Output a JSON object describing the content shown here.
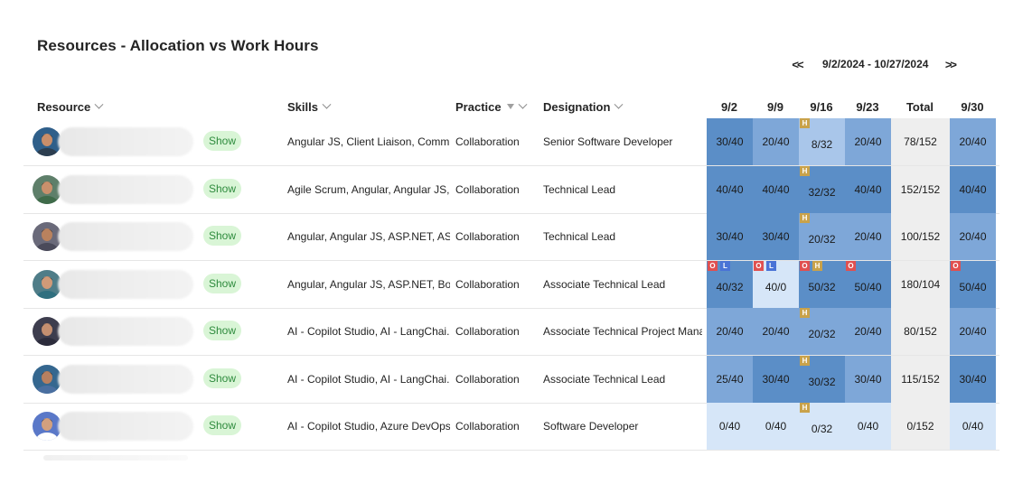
{
  "page": {
    "title": "Resources - Allocation vs Work Hours"
  },
  "date_nav": {
    "prev_label": "<<",
    "range": "9/2/2024 - 10/27/2024",
    "next_label": ">>"
  },
  "columns": {
    "resource": "Resource",
    "skills": "Skills",
    "practice": "Practice",
    "designation": "Designation",
    "weeks": [
      "9/2",
      "9/9",
      "9/16",
      "9/23",
      "Total",
      "9/30"
    ]
  },
  "show_label": "Show",
  "rows": [
    {
      "skills": "Angular JS, Client Liaison, Commu...",
      "practice": "Collaboration",
      "designation": "Senior Software Developer",
      "cells": [
        {
          "v": "30/40",
          "tags": []
        },
        {
          "v": "20/40",
          "tags": []
        },
        {
          "v": "8/32",
          "tags": [
            "H"
          ]
        },
        {
          "v": "20/40",
          "tags": []
        },
        {
          "v": "78/152",
          "tags": []
        },
        {
          "v": "20/40",
          "tags": []
        }
      ]
    },
    {
      "skills": "Agile Scrum, Angular, Angular JS, ...",
      "practice": "Collaboration",
      "designation": "Technical Lead",
      "cells": [
        {
          "v": "40/40",
          "tags": []
        },
        {
          "v": "40/40",
          "tags": []
        },
        {
          "v": "32/32",
          "tags": [
            "H"
          ]
        },
        {
          "v": "40/40",
          "tags": []
        },
        {
          "v": "152/152",
          "tags": []
        },
        {
          "v": "40/40",
          "tags": []
        }
      ]
    },
    {
      "skills": "Angular, Angular JS, ASP.NET, ASP...",
      "practice": "Collaboration",
      "designation": "Technical Lead",
      "cells": [
        {
          "v": "30/40",
          "tags": []
        },
        {
          "v": "30/40",
          "tags": []
        },
        {
          "v": "20/32",
          "tags": [
            "H"
          ]
        },
        {
          "v": "20/40",
          "tags": []
        },
        {
          "v": "100/152",
          "tags": []
        },
        {
          "v": "20/40",
          "tags": []
        }
      ]
    },
    {
      "skills": "Angular, Angular JS, ASP.NET, Boo...",
      "practice": "Collaboration",
      "designation": "Associate Technical Lead",
      "cells": [
        {
          "v": "40/32",
          "tags": [
            "O",
            "L"
          ]
        },
        {
          "v": "40/0",
          "tags": [
            "O",
            "L"
          ]
        },
        {
          "v": "50/32",
          "tags": [
            "O",
            "H"
          ]
        },
        {
          "v": "50/40",
          "tags": [
            "O"
          ]
        },
        {
          "v": "180/104",
          "tags": []
        },
        {
          "v": "50/40",
          "tags": [
            "O"
          ]
        }
      ]
    },
    {
      "skills": "AI - Copilot Studio, AI - LangChai...",
      "practice": "Collaboration",
      "designation": "Associate Technical Project Mana...",
      "cells": [
        {
          "v": "20/40",
          "tags": []
        },
        {
          "v": "20/40",
          "tags": []
        },
        {
          "v": "20/32",
          "tags": [
            "H"
          ]
        },
        {
          "v": "20/40",
          "tags": []
        },
        {
          "v": "80/152",
          "tags": []
        },
        {
          "v": "20/40",
          "tags": []
        }
      ]
    },
    {
      "skills": "AI - Copilot Studio, AI - LangChai...",
      "practice": "Collaboration",
      "designation": "Associate Technical Lead",
      "cells": [
        {
          "v": "25/40",
          "tags": []
        },
        {
          "v": "30/40",
          "tags": []
        },
        {
          "v": "30/32",
          "tags": [
            "H"
          ]
        },
        {
          "v": "30/40",
          "tags": []
        },
        {
          "v": "115/152",
          "tags": []
        },
        {
          "v": "30/40",
          "tags": []
        }
      ]
    },
    {
      "skills": "AI - Copilot Studio, Azure DevOps...",
      "practice": "Collaboration",
      "designation": "Software Developer",
      "cells": [
        {
          "v": "0/40",
          "tags": []
        },
        {
          "v": "0/40",
          "tags": []
        },
        {
          "v": "0/32",
          "tags": [
            "H"
          ]
        },
        {
          "v": "0/40",
          "tags": []
        },
        {
          "v": "0/152",
          "tags": []
        },
        {
          "v": "0/40",
          "tags": []
        }
      ]
    }
  ],
  "colors": {
    "dark": "#5b8ec7",
    "mid": "#7ea7d8",
    "light": "#a9c6ea",
    "pale": "#d6e6f8",
    "total": "#eeeeee",
    "show_bg": "#d9f5d6",
    "holiday": "#c9a24a",
    "overalloc": "#e05050",
    "leave": "#4a73d6"
  }
}
